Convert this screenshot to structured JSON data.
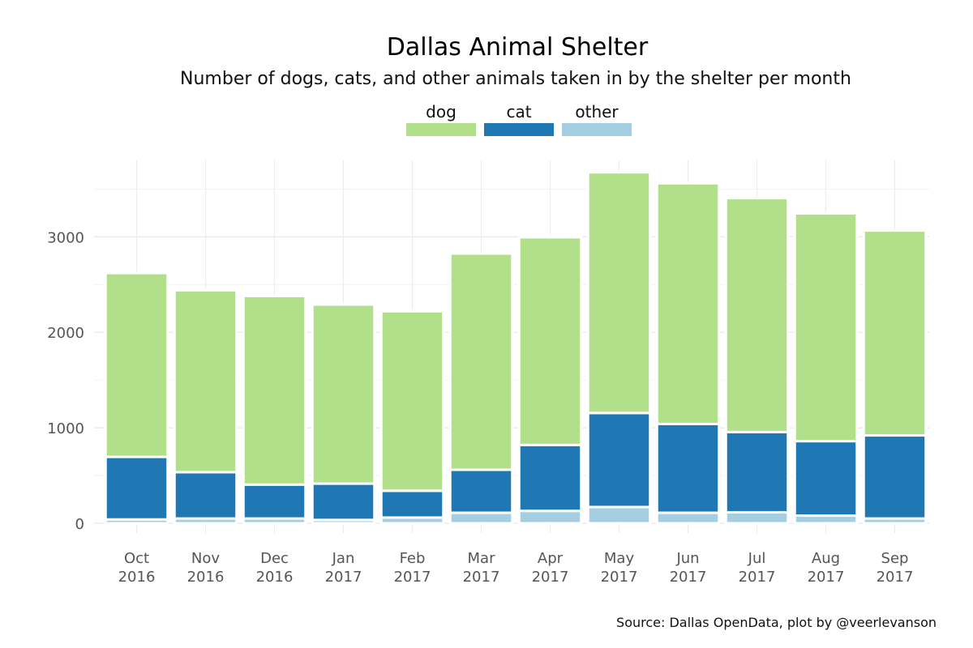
{
  "chart_data": {
    "type": "bar",
    "stacked": true,
    "title": "Dallas Animal Shelter",
    "subtitle": "Number of dogs, cats, and other animals taken in by the shelter per month",
    "caption": "Source: Dallas OpenData, plot by @veerlevanson",
    "xlabel": "",
    "ylabel": "",
    "ylim": [
      0,
      3800
    ],
    "y_ticks": [
      "0",
      "1000",
      "2000",
      "3000"
    ],
    "y_tick_values": [
      0,
      1000,
      2000,
      3000
    ],
    "grid": true,
    "legend_position": "top",
    "categories": [
      {
        "month": "Oct",
        "year": "2016"
      },
      {
        "month": "Nov",
        "year": "2016"
      },
      {
        "month": "Dec",
        "year": "2016"
      },
      {
        "month": "Jan",
        "year": "2017"
      },
      {
        "month": "Feb",
        "year": "2017"
      },
      {
        "month": "Mar",
        "year": "2017"
      },
      {
        "month": "Apr",
        "year": "2017"
      },
      {
        "month": "May",
        "year": "2017"
      },
      {
        "month": "Jun",
        "year": "2017"
      },
      {
        "month": "Jul",
        "year": "2017"
      },
      {
        "month": "Aug",
        "year": "2017"
      },
      {
        "month": "Sep",
        "year": "2017"
      }
    ],
    "series": [
      {
        "name": "other",
        "color": "#a6cee3",
        "values": [
          40,
          50,
          50,
          35,
          60,
          110,
          130,
          170,
          110,
          115,
          80,
          50
        ]
      },
      {
        "name": "cat",
        "color": "#1f78b4",
        "values": [
          655,
          485,
          355,
          380,
          280,
          450,
          690,
          985,
          930,
          840,
          780,
          870
        ]
      },
      {
        "name": "dog",
        "color": "#b2df8a",
        "values": [
          1925,
          1905,
          1975,
          1875,
          1880,
          2265,
          2175,
          2520,
          2520,
          2450,
          2385,
          2145
        ]
      }
    ],
    "legend": [
      {
        "name": "dog",
        "color": "#b2df8a"
      },
      {
        "name": "cat",
        "color": "#1f78b4"
      },
      {
        "name": "other",
        "color": "#a6cee3"
      }
    ]
  }
}
